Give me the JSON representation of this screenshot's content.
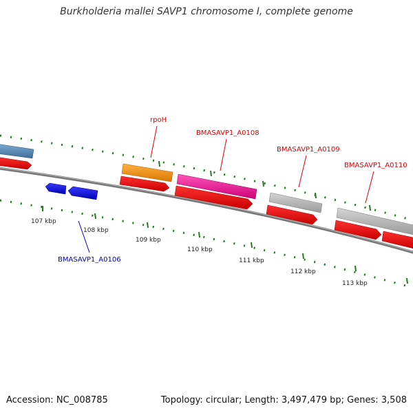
{
  "title": "Burkholderia mallei SAVP1 chromosome I, complete genome",
  "footer": {
    "accession": "Accession: NC_008785",
    "summary": "Topology: circular; Length: 3,497,479 bp; Genes: 3,508"
  },
  "colors": {
    "backbone": "#7a7a7a",
    "tick": "#1f7a1f",
    "forward_label": "#dd0000",
    "reverse_label": "#0000cc",
    "cds": "#ee0000",
    "gene_blue": "#1111ee",
    "gene_steel": "#5b8db8",
    "gene_orange": "#f39a1e",
    "gene_pink": "#ee2299",
    "gene_grey": "#bdbdbd"
  },
  "scale_labels": [
    "107 kbp",
    "108 kbp",
    "109 kbp",
    "110 kbp",
    "111 kbp",
    "112 kbp",
    "113 kbp"
  ],
  "gene_labels": [
    {
      "text": "rpoH",
      "strand": "forward"
    },
    {
      "text": "BMASAVP1_A0108",
      "strand": "forward"
    },
    {
      "text": "BMASAVP1_A0109",
      "strand": "forward"
    },
    {
      "text": "BMASAVP1_A0110",
      "strand": "forward"
    },
    {
      "text": "BMASAVP1_A0106",
      "strand": "reverse"
    }
  ]
}
